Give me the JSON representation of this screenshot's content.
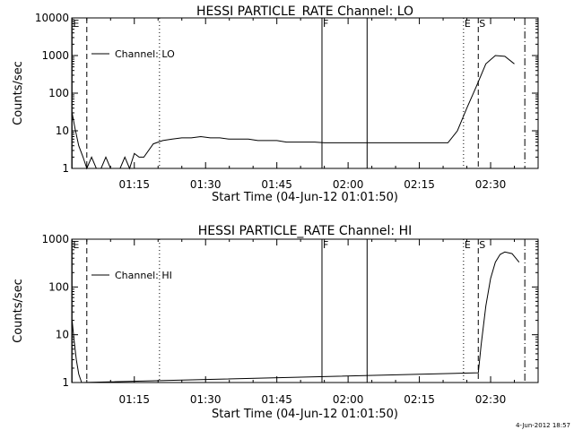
{
  "chart_data": [
    {
      "type": "line",
      "title": "HESSI PARTICLE_RATE Channel: LO",
      "xlabel": "Start Time (04-Jun-12 01:01:50)",
      "ylabel": "Counts/sec",
      "yscale": "log",
      "xlim_minutes": [
        61.83,
        160.0
      ],
      "ylim": [
        1,
        10000
      ],
      "x_tick_labels": [
        "01:15",
        "01:30",
        "01:45",
        "02:00",
        "02:15",
        "02:30"
      ],
      "x_tick_minutes": [
        75,
        90,
        105,
        120,
        135,
        150
      ],
      "y_tick_labels": [
        "1",
        "10",
        "100",
        "1000",
        "10000"
      ],
      "y_tick_values": [
        1,
        10,
        100,
        1000,
        10000
      ],
      "legend": {
        "label": "Channel: LO",
        "placement": "top-left"
      },
      "series": [
        {
          "name": "Channel: LO",
          "x_minutes": [
            61.9,
            62.5,
            63.3,
            64.2,
            65,
            66,
            67,
            68,
            69,
            70,
            71,
            72,
            73,
            74,
            75,
            76,
            77,
            79,
            81,
            83,
            85,
            87,
            89,
            91,
            93,
            95,
            97,
            99,
            101,
            103,
            105,
            107,
            109,
            111,
            113,
            115,
            117,
            119,
            121,
            123,
            125,
            127,
            129,
            131,
            133,
            135,
            137,
            139,
            141,
            143,
            145,
            147,
            149,
            151,
            153,
            155
          ],
          "y": [
            30,
            12,
            4,
            2,
            1,
            2,
            1,
            1,
            2,
            1,
            1,
            1,
            2,
            1,
            2.5,
            2,
            2,
            4.5,
            5.5,
            6,
            6.5,
            6.5,
            7,
            6.5,
            6.5,
            6,
            6,
            6,
            5.5,
            5.5,
            5.5,
            5,
            5,
            5,
            5,
            4.8,
            4.8,
            4.8,
            4.8,
            4.8,
            4.8,
            4.8,
            4.8,
            4.8,
            4.8,
            4.8,
            4.8,
            4.8,
            4.8,
            10,
            40,
            150,
            600,
            1000,
            950,
            600
          ]
        }
      ],
      "markers": [
        {
          "label": "E",
          "x_minutes": 61.9,
          "style": "solid"
        },
        {
          "label": "",
          "x_minutes": 65.0,
          "style": "dashed"
        },
        {
          "label": "",
          "x_minutes": 80.3,
          "style": "dotted"
        },
        {
          "label": "F",
          "x_minutes": 114.5,
          "style": "solid"
        },
        {
          "label": "",
          "x_minutes": 124.0,
          "style": "solid"
        },
        {
          "label": "E",
          "x_minutes": 144.3,
          "style": "dotted"
        },
        {
          "label": "S",
          "x_minutes": 147.4,
          "style": "dashed"
        },
        {
          "label": "",
          "x_minutes": 157.2,
          "style": "dashdot"
        }
      ]
    },
    {
      "type": "line",
      "title": "HESSI PARTICLE_RATE Channel: HI",
      "xlabel": "Start Time (04-Jun-12 01:01:50)",
      "ylabel": "Counts/sec",
      "yscale": "log",
      "xlim_minutes": [
        61.83,
        160.0
      ],
      "ylim": [
        1,
        1000
      ],
      "x_tick_labels": [
        "01:15",
        "01:30",
        "01:45",
        "02:00",
        "02:15",
        "02:30"
      ],
      "x_tick_minutes": [
        75,
        90,
        105,
        120,
        135,
        150
      ],
      "y_tick_labels": [
        "1",
        "10",
        "100",
        "1000"
      ],
      "y_tick_values": [
        1,
        10,
        100,
        1000
      ],
      "legend": {
        "label": "Channel: HI",
        "placement": "top-left"
      },
      "series": [
        {
          "name": "Channel: HI",
          "x_minutes": [
            61.9,
            62.3,
            62.8,
            63.3,
            63.9,
            147.4,
            148.0,
            149.0,
            150.0,
            151.0,
            152.0,
            153.0,
            154.5,
            156.0
          ],
          "y": [
            20,
            8,
            3,
            1.5,
            1,
            1.6,
            6,
            40,
            150,
            330,
            480,
            540,
            500,
            330
          ]
        }
      ],
      "markers": [
        {
          "label": "E",
          "x_minutes": 61.9,
          "style": "solid"
        },
        {
          "label": "",
          "x_minutes": 65.0,
          "style": "dashed"
        },
        {
          "label": "",
          "x_minutes": 80.3,
          "style": "dotted"
        },
        {
          "label": "F",
          "x_minutes": 114.5,
          "style": "solid"
        },
        {
          "label": "",
          "x_minutes": 124.0,
          "style": "solid"
        },
        {
          "label": "E",
          "x_minutes": 144.3,
          "style": "dotted"
        },
        {
          "label": "S",
          "x_minutes": 147.4,
          "style": "dashed"
        },
        {
          "label": "",
          "x_minutes": 157.2,
          "style": "dashdot"
        }
      ]
    }
  ],
  "footer": {
    "date_stamp": "4-Jun-2012 18:57"
  }
}
